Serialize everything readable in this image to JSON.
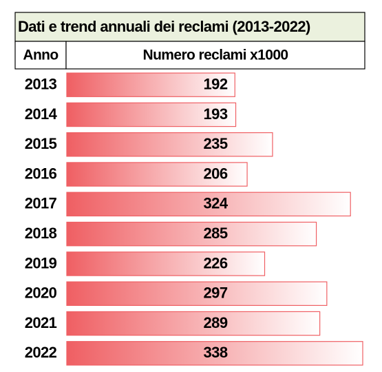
{
  "chart_data": {
    "type": "bar",
    "orientation": "horizontal",
    "title": "Dati e trend annuali dei reclami (2013-2022)",
    "column_headers": [
      "Anno",
      "Numero reclami x1000"
    ],
    "categories": [
      "2013",
      "2014",
      "2015",
      "2016",
      "2017",
      "2018",
      "2019",
      "2020",
      "2021",
      "2022"
    ],
    "values": [
      192,
      193,
      235,
      206,
      324,
      285,
      226,
      297,
      289,
      338
    ],
    "color": "#ef5f63"
  }
}
